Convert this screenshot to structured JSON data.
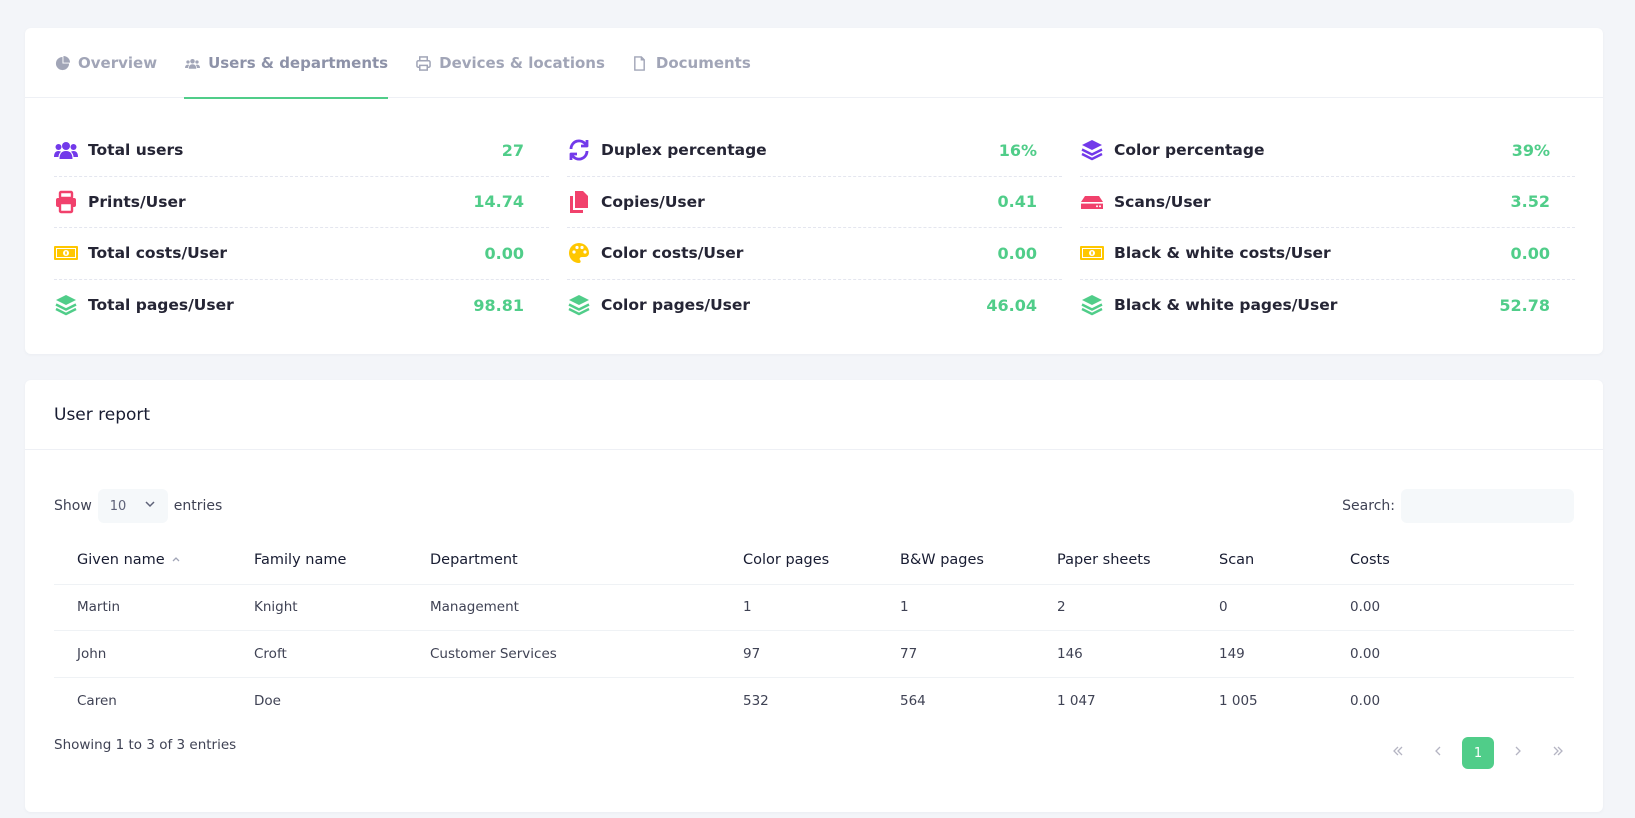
{
  "tabs": [
    {
      "label": "Overview",
      "icon": "pie-chart-icon"
    },
    {
      "label": "Users & departments",
      "icon": "users-icon",
      "active": true
    },
    {
      "label": "Devices & locations",
      "icon": "printer-icon"
    },
    {
      "label": "Documents",
      "icon": "document-icon"
    }
  ],
  "stats": {
    "col1": [
      {
        "label": "Total users",
        "value": "27",
        "icon": "users-icon",
        "color": "#7239ea"
      },
      {
        "label": "Prints/User",
        "value": "14.74",
        "icon": "printer-icon",
        "color": "#f1416c"
      },
      {
        "label": "Total costs/User",
        "value": "0.00",
        "icon": "money-bill-icon",
        "color": "#ffc700"
      },
      {
        "label": "Total pages/User",
        "value": "98.81",
        "icon": "layers-icon",
        "color": "#50cd89"
      }
    ],
    "col2": [
      {
        "label": "Duplex percentage",
        "value": "16%",
        "icon": "refresh-icon",
        "color": "#7239ea"
      },
      {
        "label": "Copies/User",
        "value": "0.41",
        "icon": "copy-icon",
        "color": "#f1416c"
      },
      {
        "label": "Color costs/User",
        "value": "0.00",
        "icon": "palette-icon",
        "color": "#ffc700"
      },
      {
        "label": "Color pages/User",
        "value": "46.04",
        "icon": "layers-icon",
        "color": "#50cd89"
      }
    ],
    "col3": [
      {
        "label": "Color percentage",
        "value": "39%",
        "icon": "layers-icon",
        "color": "#7239ea"
      },
      {
        "label": "Scans/User",
        "value": "3.52",
        "icon": "scanner-icon",
        "color": "#f1416c"
      },
      {
        "label": "Black & white costs/User",
        "value": "0.00",
        "icon": "money-bill-icon",
        "color": "#ffc700"
      },
      {
        "label": "Black & white pages/User",
        "value": "52.78",
        "icon": "layers-icon",
        "color": "#50cd89"
      }
    ]
  },
  "report": {
    "title": "User report",
    "show_label": "Show",
    "entries_label": "entries",
    "page_size": "10",
    "search_label": "Search:",
    "search_value": "",
    "columns": [
      "Given name",
      "Family name",
      "Department",
      "Color pages",
      "B&W pages",
      "Paper sheets",
      "Scan",
      "Costs"
    ],
    "rows": [
      [
        "Martin",
        "Knight",
        "Management",
        "1",
        "1",
        "2",
        "0",
        "0.00"
      ],
      [
        "John",
        "Croft",
        "Customer Services",
        "97",
        "77",
        "146",
        "149",
        "0.00"
      ],
      [
        "Caren",
        "Doe",
        "",
        "532",
        "564",
        "1 047",
        "1 005",
        "0.00"
      ]
    ],
    "info": "Showing 1 to 3 of 3 entries",
    "current_page": "1"
  },
  "colors": {
    "accent": "#50cd89",
    "purple": "#7239ea",
    "red": "#f1416c",
    "yellow": "#ffc700"
  }
}
